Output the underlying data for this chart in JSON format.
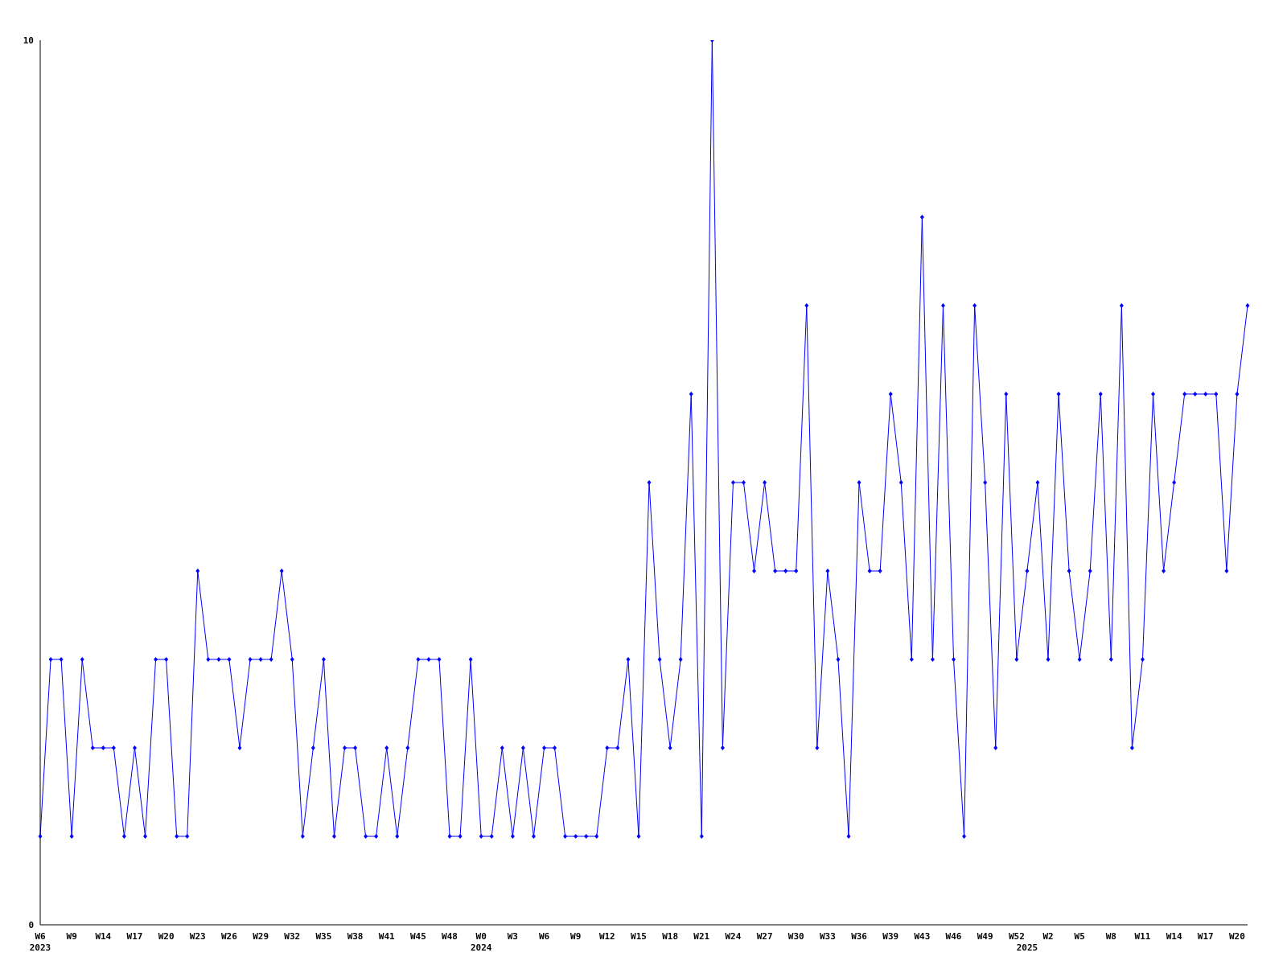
{
  "chart_data": {
    "type": "line",
    "categories": [
      "W6\n2023",
      null,
      null,
      "W9",
      null,
      null,
      "W14",
      null,
      null,
      "W17",
      null,
      null,
      "W20",
      null,
      null,
      "W23",
      null,
      null,
      "W26",
      null,
      null,
      "W29",
      null,
      null,
      "W32",
      null,
      null,
      "W35",
      null,
      null,
      "W38",
      null,
      null,
      "W41",
      null,
      null,
      "W45",
      null,
      null,
      "W48",
      null,
      null,
      "W0\n2024",
      null,
      null,
      "W3",
      null,
      null,
      "W6",
      null,
      null,
      "W9",
      null,
      null,
      "W12",
      null,
      null,
      "W15",
      null,
      null,
      "W18",
      null,
      null,
      "W21",
      null,
      null,
      "W24",
      null,
      null,
      "W27",
      null,
      null,
      "W30",
      null,
      null,
      "W33",
      null,
      null,
      "W36",
      null,
      null,
      "W39",
      null,
      null,
      "W43",
      null,
      null,
      "W46",
      null,
      null,
      "W49",
      null,
      null,
      "W52",
      "\n2025",
      null,
      "W2",
      null,
      null,
      "W5",
      null,
      null,
      "W8",
      null,
      null,
      "W11",
      null,
      null,
      "W14",
      null,
      null,
      "W17",
      null,
      null,
      "W20",
      null
    ],
    "series": [
      {
        "color": "#0000ff",
        "values": [
          1,
          3,
          3,
          1,
          3,
          2,
          2,
          2,
          1,
          2,
          1,
          3,
          3,
          1,
          1,
          4,
          3,
          3,
          3,
          2,
          3,
          3,
          3,
          4,
          3,
          1,
          2,
          3,
          1,
          2,
          2,
          1,
          1,
          2,
          1,
          2,
          3,
          3,
          3,
          1,
          1,
          3,
          1,
          1,
          2,
          1,
          2,
          1,
          2,
          2,
          1,
          1,
          1,
          1,
          2,
          2,
          3,
          1,
          5,
          3,
          2,
          3,
          6,
          1,
          10,
          2,
          5,
          5,
          4,
          5,
          4,
          4,
          4,
          7,
          2,
          4,
          3,
          1,
          5,
          4,
          4,
          6,
          5,
          3,
          8,
          3,
          7,
          3,
          1,
          7,
          5,
          2,
          6,
          3,
          4,
          5,
          3,
          6,
          4,
          3,
          4,
          6,
          3,
          7,
          2,
          3,
          6,
          4,
          5,
          6,
          6,
          6,
          6,
          4,
          6,
          7
        ]
      }
    ],
    "ylim": [
      0,
      10
    ],
    "yticks": [
      0,
      10
    ],
    "marker": "diamond",
    "line_style": "solid"
  }
}
